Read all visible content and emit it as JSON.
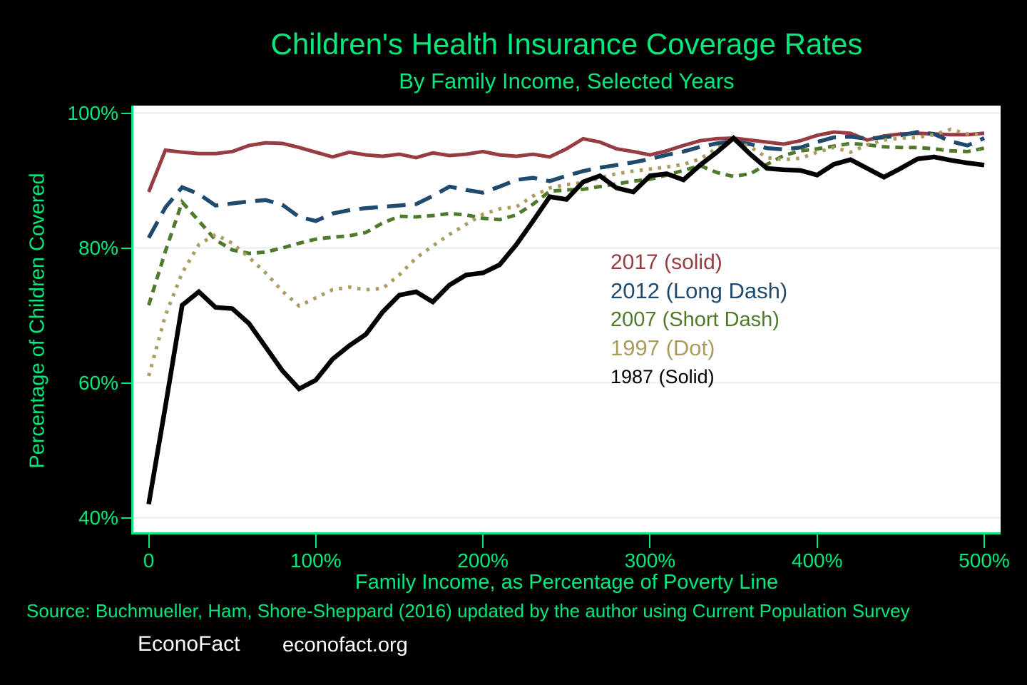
{
  "header": {
    "title": "Children's Health Insurance Coverage Rates",
    "subtitle": "By Family Income, Selected Years"
  },
  "footer": {
    "source": "Source: Buchmueller, Ham, Shore-Sheppard (2016) updated by the author using Current Population Survey",
    "brand": "EconoFact",
    "url": "econofact.org"
  },
  "theme": {
    "accent_green": "#00ea7c",
    "plot_background": "#ffffff",
    "grid_color": "#e7eef2",
    "page_background": "#000000"
  },
  "chart_data": {
    "type": "line",
    "title": "Children's Health Insurance Coverage Rates",
    "subtitle": "By Family Income, Selected Years",
    "xlabel": "Family Income, as Percentage of Poverty Line",
    "ylabel": "Percentage of Children Covered",
    "xlim": [
      -10,
      510
    ],
    "ylim": [
      37.6,
      101.1
    ],
    "grid": "horizontal",
    "legend_position": "middle-right",
    "x_ticks": [
      {
        "value": 0,
        "label": "0"
      },
      {
        "value": 100,
        "label": "100%"
      },
      {
        "value": 200,
        "label": "200%"
      },
      {
        "value": 300,
        "label": "300%"
      },
      {
        "value": 400,
        "label": "400%"
      },
      {
        "value": 500,
        "label": "500%"
      }
    ],
    "y_ticks": [
      {
        "value": 100,
        "label": "100%"
      },
      {
        "value": 80,
        "label": "80%"
      },
      {
        "value": 60,
        "label": "60%"
      },
      {
        "value": 40,
        "label": "40%"
      }
    ],
    "x": [
      0,
      10,
      20,
      30,
      40,
      50,
      60,
      70,
      80,
      90,
      100,
      110,
      120,
      130,
      140,
      150,
      160,
      170,
      180,
      190,
      200,
      210,
      220,
      230,
      240,
      250,
      260,
      270,
      280,
      290,
      300,
      310,
      320,
      330,
      340,
      350,
      360,
      370,
      380,
      390,
      400,
      410,
      420,
      430,
      440,
      450,
      460,
      470,
      480,
      490,
      500
    ],
    "series": [
      {
        "name": "2017",
        "legend_label": "2017 (solid)",
        "style": "solid",
        "color": "#963c42",
        "width": 5,
        "values": [
          88.3,
          94.5,
          94.2,
          94.0,
          94.0,
          94.3,
          95.2,
          95.6,
          95.5,
          94.9,
          94.2,
          93.5,
          94.2,
          93.8,
          93.6,
          93.9,
          93.4,
          94.1,
          93.7,
          93.9,
          94.3,
          93.8,
          93.6,
          93.9,
          93.5,
          94.7,
          96.2,
          95.7,
          94.7,
          94.3,
          93.8,
          94.4,
          95.2,
          95.9,
          96.2,
          96.3,
          96.0,
          95.7,
          95.4,
          95.9,
          96.7,
          97.2,
          97.0,
          96.0,
          96.6,
          96.9,
          97.0,
          96.9,
          96.8,
          96.8,
          97.0
        ]
      },
      {
        "name": "2012",
        "legend_label": "2012 (Long Dash)",
        "style": "long-dash",
        "color": "#1f4a6e",
        "width": 5.5,
        "values": [
          81.5,
          86.0,
          89.0,
          88.0,
          86.3,
          86.6,
          86.9,
          87.1,
          86.4,
          84.6,
          84.0,
          85.1,
          85.6,
          85.9,
          86.1,
          86.3,
          86.5,
          87.7,
          89.1,
          88.6,
          88.2,
          89.1,
          90.1,
          90.4,
          89.9,
          90.7,
          91.4,
          91.9,
          92.3,
          92.7,
          93.2,
          93.8,
          94.3,
          95.0,
          95.5,
          95.8,
          95.4,
          94.8,
          94.6,
          94.9,
          95.7,
          96.4,
          96.5,
          96.2,
          96.4,
          96.7,
          97.2,
          96.9,
          95.8,
          95.2,
          96.3
        ]
      },
      {
        "name": "2007",
        "legend_label": "2007 (Short Dash)",
        "style": "short-dash",
        "color": "#4f7a2b",
        "width": 5,
        "values": [
          71.5,
          79.5,
          86.8,
          84.0,
          81.2,
          79.7,
          79.2,
          79.4,
          80.0,
          80.7,
          81.3,
          81.6,
          81.8,
          82.3,
          83.7,
          84.7,
          84.6,
          84.8,
          85.1,
          84.9,
          84.4,
          84.2,
          84.9,
          86.5,
          88.4,
          88.6,
          88.7,
          89.1,
          89.5,
          89.9,
          90.2,
          90.8,
          91.5,
          92.2,
          91.2,
          90.6,
          91.0,
          92.4,
          93.7,
          94.4,
          94.7,
          95.1,
          95.5,
          95.3,
          95.0,
          94.9,
          94.9,
          94.7,
          94.4,
          94.3,
          94.8
        ]
      },
      {
        "name": "1997",
        "legend_label": "1997 (Dot)",
        "style": "dot",
        "color": "#ad9c60",
        "width": 5,
        "values": [
          61.0,
          70.0,
          76.3,
          80.5,
          82.0,
          80.7,
          78.6,
          76.3,
          73.6,
          71.4,
          72.6,
          73.8,
          74.2,
          73.8,
          74.0,
          76.0,
          78.5,
          80.3,
          82.0,
          83.5,
          85.0,
          85.8,
          86.1,
          87.7,
          88.9,
          89.4,
          89.7,
          90.4,
          91.0,
          91.4,
          91.7,
          92.0,
          92.4,
          93.2,
          94.8,
          95.9,
          95.0,
          93.4,
          93.1,
          93.3,
          94.2,
          94.9,
          94.2,
          95.3,
          96.0,
          96.3,
          96.4,
          96.8,
          97.6,
          96.9,
          96.8
        ]
      },
      {
        "name": "1987",
        "legend_label": "1987 (Solid)",
        "style": "solid",
        "color": "#000000",
        "width": 6.5,
        "values": [
          42.0,
          56.5,
          71.5,
          73.5,
          71.2,
          71.0,
          68.8,
          65.3,
          61.8,
          59.1,
          60.4,
          63.5,
          65.5,
          67.2,
          70.5,
          73.0,
          73.5,
          72.0,
          74.5,
          76.0,
          76.3,
          77.5,
          80.5,
          84.0,
          87.6,
          87.2,
          89.8,
          90.7,
          88.9,
          88.3,
          90.7,
          91.0,
          90.1,
          92.3,
          94.2,
          96.3,
          93.9,
          91.8,
          91.6,
          91.5,
          90.8,
          92.4,
          93.1,
          91.8,
          90.5,
          91.8,
          93.2,
          93.5,
          93.0,
          92.6,
          92.3
        ]
      }
    ]
  }
}
